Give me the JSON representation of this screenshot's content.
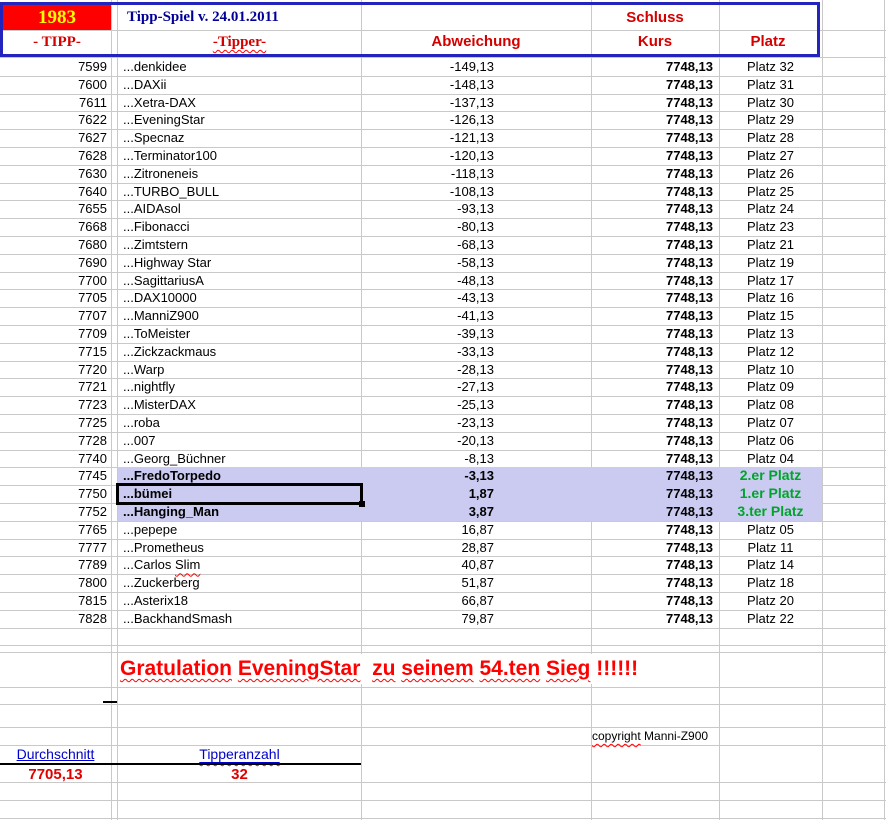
{
  "header": {
    "year": "1983",
    "title": "Tipp-Spiel v. 24.01.2011",
    "schluss": "Schluss",
    "col_tipp": "- TIPP-",
    "col_tipper": "-Tipper-",
    "col_abweichung": "Abweichung",
    "col_kurs": "Kurs",
    "col_platz": "Platz"
  },
  "colors": {
    "year_bg": "#ff0000",
    "year_text": "#ffff00",
    "title_text": "#000099",
    "header_red": "#d40000",
    "border_blue": "#2323bd",
    "highlight_lavender": "#cbcbf2",
    "winner_green": "#00a42a",
    "summary_blue": "#0000cc",
    "value_red": "#e00000",
    "gridline": "#c9c9c9"
  },
  "rows": [
    {
      "tipp": "7599",
      "tipper": "...denkidee",
      "abweichung": "-149,13",
      "kurs": "7748,13",
      "platz": "Platz 32",
      "highlight": false,
      "winner": false,
      "selected": false,
      "squiggle_last": false
    },
    {
      "tipp": "7600",
      "tipper": "...DAXii",
      "abweichung": "-148,13",
      "kurs": "7748,13",
      "platz": "Platz 31",
      "highlight": false,
      "winner": false,
      "selected": false,
      "squiggle_last": false
    },
    {
      "tipp": "7611",
      "tipper": "...Xetra-DAX",
      "abweichung": "-137,13",
      "kurs": "7748,13",
      "platz": "Platz 30",
      "highlight": false,
      "winner": false,
      "selected": false,
      "squiggle_last": false
    },
    {
      "tipp": "7622",
      "tipper": "...EveningStar",
      "abweichung": "-126,13",
      "kurs": "7748,13",
      "platz": "Platz 29",
      "highlight": false,
      "winner": false,
      "selected": false,
      "squiggle_last": false
    },
    {
      "tipp": "7627",
      "tipper": "...Specnaz",
      "abweichung": "-121,13",
      "kurs": "7748,13",
      "platz": "Platz 28",
      "highlight": false,
      "winner": false,
      "selected": false,
      "squiggle_last": false
    },
    {
      "tipp": "7628",
      "tipper": "...Terminator100",
      "abweichung": "-120,13",
      "kurs": "7748,13",
      "platz": "Platz 27",
      "highlight": false,
      "winner": false,
      "selected": false,
      "squiggle_last": false
    },
    {
      "tipp": "7630",
      "tipper": "...Zitroneneis",
      "abweichung": "-118,13",
      "kurs": "7748,13",
      "platz": "Platz 26",
      "highlight": false,
      "winner": false,
      "selected": false,
      "squiggle_last": false
    },
    {
      "tipp": "7640",
      "tipper": "...TURBO_BULL",
      "abweichung": "-108,13",
      "kurs": "7748,13",
      "platz": "Platz 25",
      "highlight": false,
      "winner": false,
      "selected": false,
      "squiggle_last": false
    },
    {
      "tipp": "7655",
      "tipper": "...AIDAsol",
      "abweichung": "-93,13",
      "kurs": "7748,13",
      "platz": "Platz 24",
      "highlight": false,
      "winner": false,
      "selected": false,
      "squiggle_last": false
    },
    {
      "tipp": "7668",
      "tipper": "...Fibonacci",
      "abweichung": "-80,13",
      "kurs": "7748,13",
      "platz": "Platz 23",
      "highlight": false,
      "winner": false,
      "selected": false,
      "squiggle_last": false
    },
    {
      "tipp": "7680",
      "tipper": "...Zimtstern",
      "abweichung": "-68,13",
      "kurs": "7748,13",
      "platz": "Platz 21",
      "highlight": false,
      "winner": false,
      "selected": false,
      "squiggle_last": false
    },
    {
      "tipp": "7690",
      "tipper": "...Highway Star",
      "abweichung": "-58,13",
      "kurs": "7748,13",
      "platz": "Platz 19",
      "highlight": false,
      "winner": false,
      "selected": false,
      "squiggle_last": false
    },
    {
      "tipp": "7700",
      "tipper": "...SagittariusA",
      "abweichung": "-48,13",
      "kurs": "7748,13",
      "platz": "Platz 17",
      "highlight": false,
      "winner": false,
      "selected": false,
      "squiggle_last": false
    },
    {
      "tipp": "7705",
      "tipper": "...DAX10000",
      "abweichung": "-43,13",
      "kurs": "7748,13",
      "platz": "Platz 16",
      "highlight": false,
      "winner": false,
      "selected": false,
      "squiggle_last": false
    },
    {
      "tipp": "7707",
      "tipper": "...ManniZ900",
      "abweichung": "-41,13",
      "kurs": "7748,13",
      "platz": "Platz 15",
      "highlight": false,
      "winner": false,
      "selected": false,
      "squiggle_last": false
    },
    {
      "tipp": "7709",
      "tipper": "...ToMeister",
      "abweichung": "-39,13",
      "kurs": "7748,13",
      "platz": "Platz 13",
      "highlight": false,
      "winner": false,
      "selected": false,
      "squiggle_last": false
    },
    {
      "tipp": "7715",
      "tipper": "...Zickzackmaus",
      "abweichung": "-33,13",
      "kurs": "7748,13",
      "platz": "Platz 12",
      "highlight": false,
      "winner": false,
      "selected": false,
      "squiggle_last": false
    },
    {
      "tipp": "7720",
      "tipper": "...Warp",
      "abweichung": "-28,13",
      "kurs": "7748,13",
      "platz": "Platz 10",
      "highlight": false,
      "winner": false,
      "selected": false,
      "squiggle_last": false
    },
    {
      "tipp": "7721",
      "tipper": "...nightfly",
      "abweichung": "-27,13",
      "kurs": "7748,13",
      "platz": "Platz 09",
      "highlight": false,
      "winner": false,
      "selected": false,
      "squiggle_last": false
    },
    {
      "tipp": "7723",
      "tipper": "...MisterDAX",
      "abweichung": "-25,13",
      "kurs": "7748,13",
      "platz": "Platz 08",
      "highlight": false,
      "winner": false,
      "selected": false,
      "squiggle_last": false
    },
    {
      "tipp": "7725",
      "tipper": "...roba",
      "abweichung": "-23,13",
      "kurs": "7748,13",
      "platz": "Platz 07",
      "highlight": false,
      "winner": false,
      "selected": false,
      "squiggle_last": false
    },
    {
      "tipp": "7728",
      "tipper": "...007",
      "abweichung": "-20,13",
      "kurs": "7748,13",
      "platz": "Platz 06",
      "highlight": false,
      "winner": false,
      "selected": false,
      "squiggle_last": false
    },
    {
      "tipp": "7740",
      "tipper": "...Georg_Büchner",
      "abweichung": "-8,13",
      "kurs": "7748,13",
      "platz": "Platz 04",
      "highlight": false,
      "winner": false,
      "selected": false,
      "squiggle_last": false
    },
    {
      "tipp": "7745",
      "tipper": "...FredoTorpedo",
      "abweichung": "-3,13",
      "kurs": "7748,13",
      "platz": "2.er Platz",
      "highlight": true,
      "winner": true,
      "selected": false,
      "squiggle_last": false
    },
    {
      "tipp": "7750",
      "tipper": "...bümei",
      "abweichung": "1,87",
      "kurs": "7748,13",
      "platz": "1.er Platz",
      "highlight": true,
      "winner": true,
      "selected": true,
      "squiggle_last": false
    },
    {
      "tipp": "7752",
      "tipper": "...Hanging_Man",
      "abweichung": "3,87",
      "kurs": "7748,13",
      "platz": "3.ter Platz",
      "highlight": true,
      "winner": true,
      "selected": false,
      "squiggle_last": false
    },
    {
      "tipp": "7765",
      "tipper": "...pepepe",
      "abweichung": "16,87",
      "kurs": "7748,13",
      "platz": "Platz 05",
      "highlight": false,
      "winner": false,
      "selected": false,
      "squiggle_last": false
    },
    {
      "tipp": "7777",
      "tipper": "...Prometheus",
      "abweichung": "28,87",
      "kurs": "7748,13",
      "platz": "Platz 11",
      "highlight": false,
      "winner": false,
      "selected": false,
      "squiggle_last": false
    },
    {
      "tipp": "7789",
      "tipper": "...Carlos Slim",
      "abweichung": "40,87",
      "kurs": "7748,13",
      "platz": "Platz 14",
      "highlight": false,
      "winner": false,
      "selected": false,
      "squiggle_last": true
    },
    {
      "tipp": "7800",
      "tipper": "...Zuckerberg",
      "abweichung": "51,87",
      "kurs": "7748,13",
      "platz": "Platz 18",
      "highlight": false,
      "winner": false,
      "selected": false,
      "squiggle_last": false
    },
    {
      "tipp": "7815",
      "tipper": "...Asterix18",
      "abweichung": "66,87",
      "kurs": "7748,13",
      "platz": "Platz 20",
      "highlight": false,
      "winner": false,
      "selected": false,
      "squiggle_last": false
    },
    {
      "tipp": "7828",
      "tipper": "...BackhandSmash",
      "abweichung": "79,87",
      "kurs": "7748,13",
      "platz": "Platz 22",
      "highlight": false,
      "winner": false,
      "selected": false,
      "squiggle_last": false
    }
  ],
  "congrats": "Gratulation EveningStar  zu seinem 54.ten Sieg !!!!!!",
  "footer": {
    "copyright": "copyright Manni-Z900",
    "avg_label": "Durchschnitt",
    "count_label": "Tipperanzahl",
    "avg_value": "7705,13",
    "count_value": "32"
  }
}
